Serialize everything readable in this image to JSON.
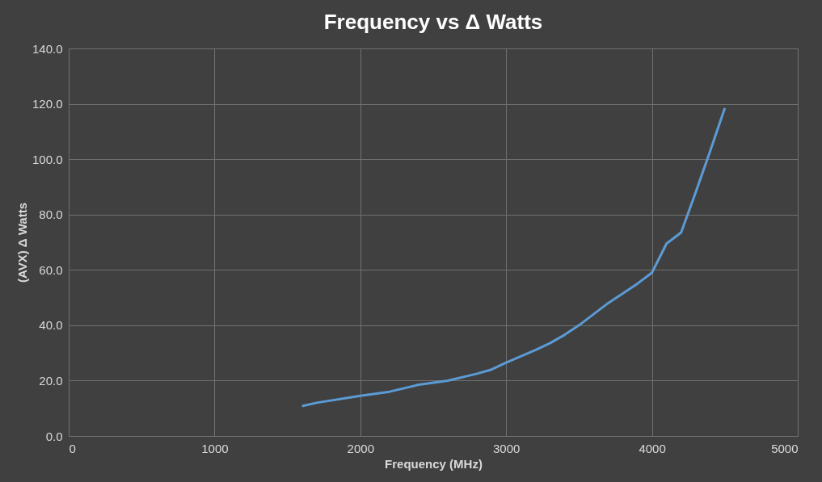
{
  "chart_data": {
    "type": "line",
    "title": "Frequency vs Δ Watts",
    "xlabel": "Frequency (MHz)",
    "ylabel": "(AVX) Δ Watts",
    "x": [
      1600,
      1700,
      2000,
      2200,
      2400,
      2600,
      2800,
      2900,
      3000,
      3200,
      3300,
      3400,
      3500,
      3600,
      3700,
      3800,
      3900,
      4000,
      4100,
      4200,
      4300,
      4400,
      4500
    ],
    "series": [
      {
        "color": "#5b9bd5",
        "values": [
          10.8,
          12,
          14.5,
          16,
          18.5,
          20,
          22.5,
          24,
          26.5,
          31,
          33.5,
          36.5,
          40,
          44,
          48,
          51.5,
          55,
          59,
          69.5,
          73.5,
          88,
          103,
          118.5
        ]
      }
    ],
    "xlim": [
      0,
      5000
    ],
    "xticks": [
      0,
      1000,
      2000,
      3000,
      4000,
      5000
    ],
    "ylim": [
      0,
      140
    ],
    "yticks": [
      {
        "value": 0,
        "label": "0.0"
      },
      {
        "value": 20,
        "label": "20.0"
      },
      {
        "value": 40,
        "label": "40.0"
      },
      {
        "value": 60,
        "label": "60.0"
      },
      {
        "value": 80,
        "label": "80.0"
      },
      {
        "value": 100,
        "label": "100.0"
      },
      {
        "value": 120,
        "label": "120.0"
      },
      {
        "value": 140,
        "label": "140.0"
      }
    ],
    "grid": true,
    "marker": "none",
    "line_style": "solid"
  }
}
